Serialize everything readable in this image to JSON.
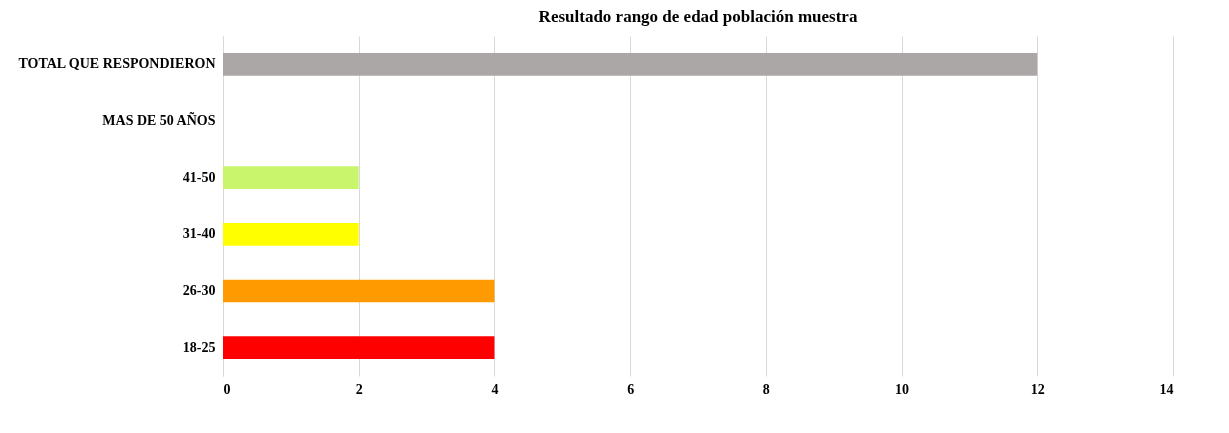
{
  "chart_data": {
    "type": "bar",
    "orientation": "horizontal",
    "title": "Resultado rango de edad población muestra",
    "categories": [
      "TOTAL  QUE  RESPONDIERON",
      "MAS DE 50 AÑOS",
      "41-50",
      "31-40",
      "26-30",
      "18-25"
    ],
    "values": [
      12,
      0,
      2,
      2,
      4,
      4
    ],
    "colors": [
      "#aba7a7",
      "#ffffff",
      "#c8f56c",
      "#ffff00",
      "#ff9a00",
      "#ff0000"
    ],
    "xlim": [
      0,
      14
    ],
    "xticks": [
      0,
      2,
      4,
      6,
      8,
      10,
      12,
      14
    ],
    "grid": "x"
  }
}
